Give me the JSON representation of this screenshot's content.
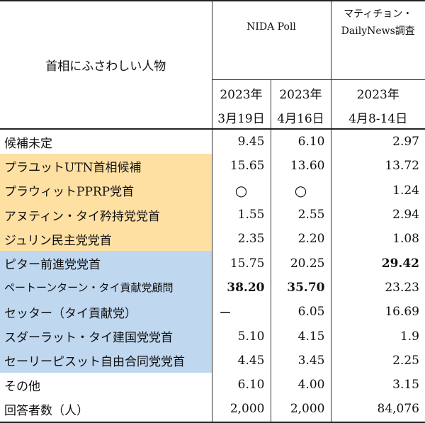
{
  "header": {
    "title": "首相にふさわしい人物",
    "nida": "NIDA Poll",
    "matichon_line1": "マティチョン・",
    "matichon_line2": "DailyNews調査",
    "col1_year": "2023年",
    "col1_date": "3月19日",
    "col2_year": "2023年",
    "col2_date": "4月16日",
    "col3_year": "2023年",
    "col3_date": "4月8-14日"
  },
  "rows": [
    {
      "name": "候補未定",
      "v1": "9.45",
      "v2": "6.10",
      "v3": "2.97"
    },
    {
      "name": "プラユットUTN首相候補",
      "v1": "15.65",
      "v2": "13.60",
      "v3": "13.72"
    },
    {
      "name": "プラウィットPPRP党首",
      "v1": "○",
      "v2": "○",
      "v3": "1.24"
    },
    {
      "name": "アヌティン・タイ矜持党党首",
      "v1": "1.55",
      "v2": "2.55",
      "v3": "2.94"
    },
    {
      "name": "ジュリン民主党党首",
      "v1": "2.35",
      "v2": "2.20",
      "v3": "1.08"
    },
    {
      "name": "ピター前進党党首",
      "v1": "15.75",
      "v2": "20.25",
      "v3": "29.42"
    },
    {
      "name": "ペートーンターン・タイ貢献党顧問",
      "v1": "38.20",
      "v2": "35.70",
      "v3": "23.23"
    },
    {
      "name": "セッター（タイ貢献党）",
      "v1": "ー",
      "v2": "6.05",
      "v3": "16.69"
    },
    {
      "name": "スダーラット・タイ建国党党首",
      "v1": "5.10",
      "v2": "4.15",
      "v3": "1.9"
    },
    {
      "name": "セーリーピスット自由合同党党首",
      "v1": "4.45",
      "v2": "3.45",
      "v3": "2.25"
    },
    {
      "name": "その他",
      "v1": "6.10",
      "v2": "4.00",
      "v3": "3.15"
    },
    {
      "name": "回答者数（人）",
      "v1": "2,000",
      "v2": "2,000",
      "v3": "84,076"
    }
  ],
  "colors": {
    "yellow": "#ffe0a3",
    "blue": "#bfd7ef"
  }
}
